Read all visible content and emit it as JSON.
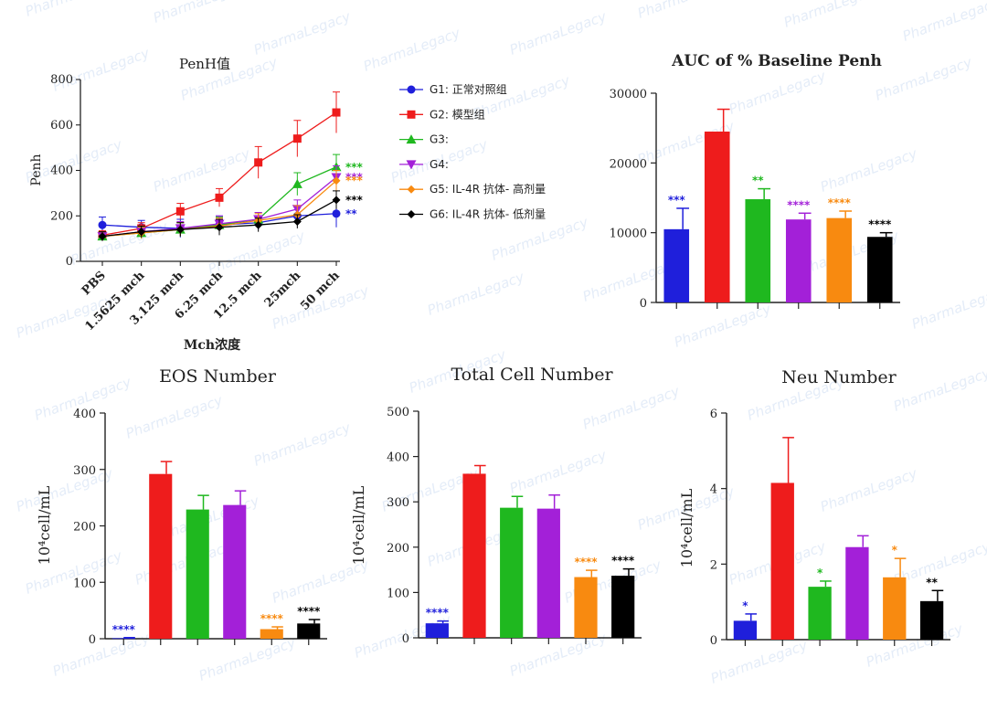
{
  "watermark": "PharmaLegacy",
  "colors": {
    "G1": "#1f1fdb",
    "G2": "#ee1c1c",
    "G3": "#1fb81f",
    "G4": "#a320d8",
    "G5": "#f88a10",
    "G6": "#000000"
  },
  "chart_data": [
    {
      "id": "penh",
      "type": "line",
      "title": "PenH值",
      "xlabel": "Mch浓度",
      "ylabel": "Penh",
      "ylim": [
        0,
        800
      ],
      "yticks": [
        0,
        200,
        400,
        600,
        800
      ],
      "categories": [
        "PBS",
        "1.5625 mch",
        "3.125 mch",
        "6.25 mch",
        "12.5 mch",
        "25mch",
        "50 mch"
      ],
      "legend": "right",
      "series": [
        {
          "name": "G1: 正常对照组",
          "group": "G1",
          "marker": "circle",
          "values": [
            160,
            150,
            145,
            160,
            170,
            200,
            210
          ],
          "err": [
            35,
            30,
            40,
            40,
            30,
            40,
            60
          ],
          "sig": "**"
        },
        {
          "name": "G2: 模型组",
          "group": "G2",
          "marker": "square",
          "values": [
            115,
            145,
            220,
            280,
            435,
            540,
            655
          ],
          "err": [
            20,
            25,
            35,
            40,
            70,
            80,
            90
          ],
          "sig": ""
        },
        {
          "name": "G3:",
          "group": "G3",
          "marker": "triangle-up",
          "values": [
            110,
            125,
            140,
            160,
            185,
            340,
            415
          ],
          "err": [
            20,
            25,
            30,
            35,
            30,
            50,
            55
          ],
          "sig": "***"
        },
        {
          "name": "G4:",
          "group": "G4",
          "marker": "triangle-down",
          "values": [
            110,
            130,
            145,
            165,
            185,
            230,
            370
          ],
          "err": [
            20,
            25,
            30,
            35,
            30,
            40,
            50
          ],
          "sig": "***"
        },
        {
          "name": "G5: IL-4R 抗体- 高剂量",
          "group": "G5",
          "marker": "diamond",
          "values": [
            110,
            125,
            140,
            155,
            180,
            205,
            355
          ],
          "err": [
            20,
            25,
            30,
            35,
            30,
            40,
            45
          ],
          "sig": "***"
        },
        {
          "name": "G6: IL-4R 抗体- 低剂量",
          "group": "G6",
          "marker": "diamond",
          "values": [
            110,
            130,
            140,
            150,
            160,
            175,
            270
          ],
          "err": [
            20,
            25,
            30,
            35,
            30,
            30,
            40
          ],
          "sig": "***"
        }
      ]
    },
    {
      "id": "auc",
      "type": "bar",
      "title": "AUC of  % Baseline Penh",
      "ylabel": "",
      "ylim": [
        0,
        30000
      ],
      "yticks": [
        0,
        10000,
        20000,
        30000
      ],
      "groups": [
        "G1",
        "G2",
        "G3",
        "G4",
        "G5",
        "G6"
      ],
      "values": [
        10500,
        24500,
        14800,
        11900,
        12100,
        9400
      ],
      "err": [
        3000,
        3200,
        1500,
        900,
        1000,
        600
      ],
      "sig": [
        "***",
        "",
        "**",
        "****",
        "****",
        "****"
      ]
    },
    {
      "id": "eos",
      "type": "bar",
      "title": "EOS Number",
      "ylabel": "10⁴cell/mL",
      "ylim": [
        0,
        400
      ],
      "yticks": [
        0,
        100,
        200,
        300,
        400
      ],
      "groups": [
        "G1",
        "G2",
        "G3",
        "G4",
        "G5",
        "G6"
      ],
      "values": [
        1,
        292,
        229,
        237,
        17,
        27
      ],
      "err": [
        1,
        22,
        25,
        25,
        4,
        7
      ],
      "sig": [
        "****",
        "",
        "",
        "",
        "****",
        "****"
      ]
    },
    {
      "id": "total",
      "type": "bar",
      "title": "Total Cell Number",
      "ylabel": "10⁴cell/mL",
      "ylim": [
        0,
        500
      ],
      "yticks": [
        0,
        100,
        200,
        300,
        400,
        500
      ],
      "groups": [
        "G1",
        "G2",
        "G3",
        "G4",
        "G5",
        "G6"
      ],
      "values": [
        32,
        362,
        287,
        285,
        134,
        137
      ],
      "err": [
        5,
        18,
        25,
        30,
        15,
        15
      ],
      "sig": [
        "****",
        "",
        "",
        "",
        "****",
        "****"
      ]
    },
    {
      "id": "neu",
      "type": "bar",
      "title": "Neu Number",
      "ylabel": "10⁴cell/mL",
      "ylim": [
        0,
        6
      ],
      "yticks": [
        0,
        2,
        4,
        6
      ],
      "groups": [
        "G1",
        "G2",
        "G3",
        "G4",
        "G5",
        "G6"
      ],
      "values": [
        0.5,
        4.15,
        1.4,
        2.45,
        1.65,
        1.02
      ],
      "err": [
        0.18,
        1.2,
        0.15,
        0.3,
        0.5,
        0.28
      ],
      "sig": [
        "*",
        "",
        "*",
        "",
        "*",
        "**"
      ]
    }
  ]
}
